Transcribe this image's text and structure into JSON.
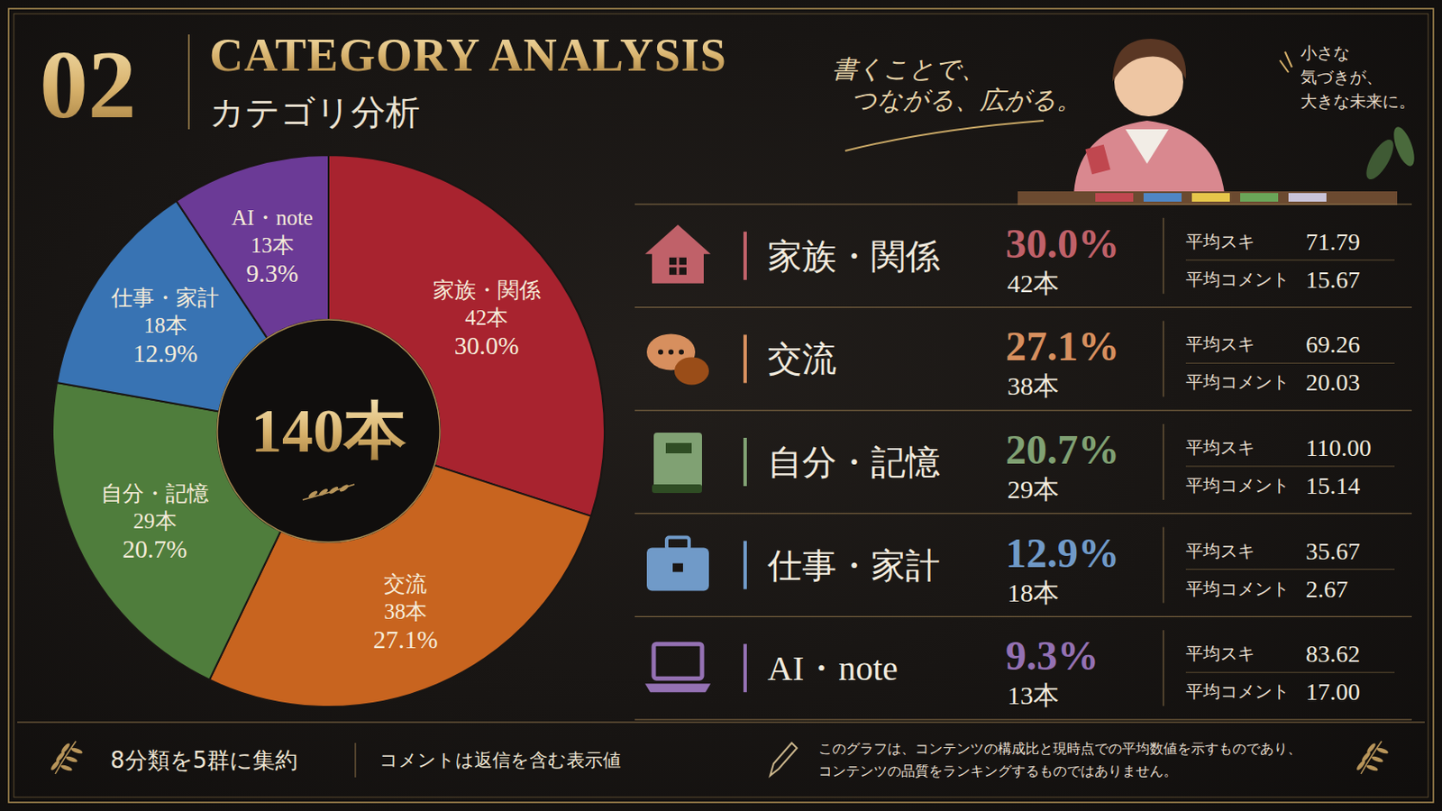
{
  "header": {
    "number": "02",
    "title": "CATEGORY ANALYSIS",
    "subtitle": "カテゴリ分析"
  },
  "tagline": [
    "書くことで、",
    "つながる、広がる。"
  ],
  "side_note": [
    "小さな",
    "気づきが、",
    "大きな未来に。"
  ],
  "chart_data": {
    "type": "donut",
    "center_label": "140本",
    "categories": [
      "家族・関係",
      "交流",
      "自分・記憶",
      "仕事・家計",
      "AI・note"
    ],
    "values": [
      30.0,
      27.1,
      20.7,
      12.9,
      9.3
    ],
    "value_labels": [
      "30.0%",
      "27.1%",
      "20.7%",
      "12.9%",
      "9.3%"
    ],
    "counts": [
      42,
      38,
      29,
      18,
      13
    ],
    "count_labels": [
      "42本",
      "38本",
      "29本",
      "18本",
      "13本"
    ],
    "colors": [
      "#a8232f",
      "#c8641f",
      "#4f7d3c",
      "#3873b3",
      "#6b3a96"
    ],
    "data_labels": true,
    "stats": {
      "likes_label": "平均スキ",
      "comments_label": "平均コメント",
      "avg_likes": [
        71.79,
        69.26,
        110.0,
        35.67,
        83.62
      ],
      "avg_likes_labels": [
        "71.79",
        "69.26",
        "110.00",
        "35.67",
        "83.62"
      ],
      "avg_comments": [
        15.67,
        20.03,
        15.14,
        2.67,
        17.0
      ],
      "avg_comments_labels": [
        "15.67",
        "20.03",
        "15.14",
        "2.67",
        "17.00"
      ]
    }
  },
  "footer": {
    "note1": "8分類を5群に集約",
    "note2": "コメントは返信を含む表示値",
    "disclaimer": [
      "このグラフは、コンテンツの構成比と現時点での平均数値を示すものであり、",
      "コンテンツの品質をランキングするものではありません。"
    ]
  }
}
